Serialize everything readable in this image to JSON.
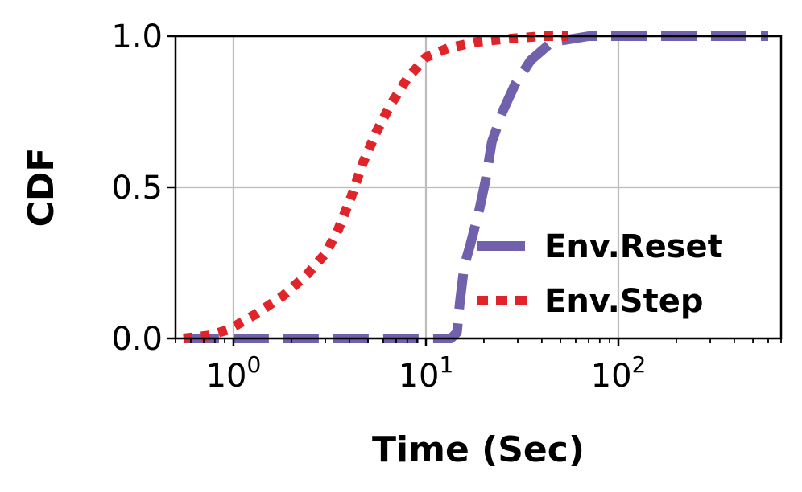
{
  "chart_data": {
    "type": "line",
    "xlabel": "Time (Sec)",
    "ylabel": "CDF",
    "xscale": "log",
    "xlim": [
      0.5,
      700
    ],
    "ylim": [
      0,
      1
    ],
    "x_ticks": [
      {
        "value": 1,
        "base": "10",
        "exp": "0"
      },
      {
        "value": 10,
        "base": "10",
        "exp": "1"
      },
      {
        "value": 100,
        "base": "10",
        "exp": "2"
      }
    ],
    "y_ticks": [
      {
        "value": 0,
        "label": "0.0"
      },
      {
        "value": 0.5,
        "label": "0.5"
      },
      {
        "value": 1,
        "label": "1.0"
      }
    ],
    "grid": true,
    "legend_position": "lower-right",
    "series": [
      {
        "name": "Env.Reset",
        "style": "dashed",
        "color": "#7161ad",
        "points": [
          [
            0.55,
            0
          ],
          [
            5,
            0
          ],
          [
            13.5,
            0
          ],
          [
            14.5,
            0.02
          ],
          [
            15,
            0.12
          ],
          [
            15.8,
            0.24
          ],
          [
            17,
            0.31
          ],
          [
            19,
            0.43
          ],
          [
            20.5,
            0.53
          ],
          [
            22,
            0.65
          ],
          [
            25,
            0.75
          ],
          [
            29,
            0.84
          ],
          [
            35,
            0.92
          ],
          [
            45,
            0.98
          ],
          [
            70,
            1.0
          ],
          [
            600,
            1.0
          ]
        ]
      },
      {
        "name": "Env.Step",
        "style": "dotted",
        "color": "#e0242a",
        "points": [
          [
            0.55,
            0
          ],
          [
            0.75,
            0.01
          ],
          [
            0.95,
            0.03
          ],
          [
            1.3,
            0.08
          ],
          [
            1.8,
            0.14
          ],
          [
            2.4,
            0.21
          ],
          [
            3.0,
            0.28
          ],
          [
            3.5,
            0.36
          ],
          [
            4.1,
            0.47
          ],
          [
            4.7,
            0.58
          ],
          [
            5.5,
            0.68
          ],
          [
            6.5,
            0.77
          ],
          [
            8,
            0.86
          ],
          [
            10,
            0.93
          ],
          [
            13,
            0.96
          ],
          [
            18,
            0.98
          ],
          [
            25,
            0.99
          ],
          [
            40,
            1.0
          ],
          [
            55,
            1.0
          ]
        ]
      }
    ]
  }
}
